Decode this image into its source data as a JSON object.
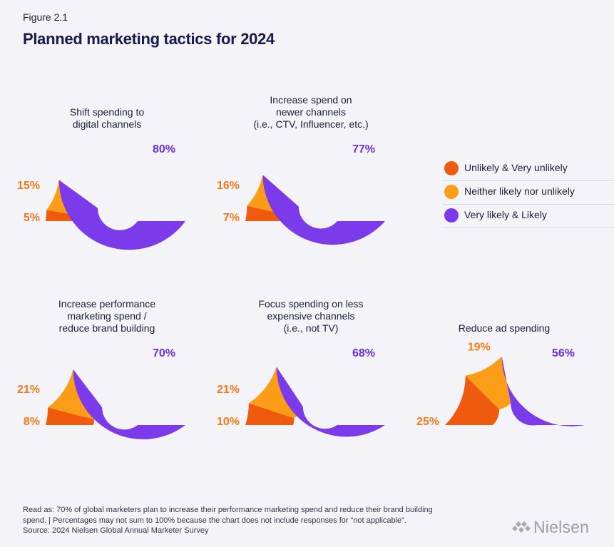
{
  "figure": {
    "label": "Figure 2.1",
    "title": "Planned marketing tactics for 2024"
  },
  "colors": {
    "unlikely": "#f05a0e",
    "neither": "#fb9d16",
    "likely": "#7b3bea",
    "label_orange": "#f07a1a",
    "label_purple": "#6b30d6"
  },
  "legend": [
    {
      "label": "Unlikely & Very unlikely",
      "color": "#f05a0e"
    },
    {
      "label": "Neither likely nor unlikely",
      "color": "#fb9d16"
    },
    {
      "label": "Very likely & Likely",
      "color": "#7b3bea"
    }
  ],
  "chart_data": [
    {
      "type": "pie",
      "title": [
        "Shift spending to",
        "digital channels"
      ],
      "categories": [
        "Unlikely & Very unlikely",
        "Neither likely nor unlikely",
        "Very likely & Likely"
      ],
      "values": [
        5,
        15,
        80
      ],
      "labels": [
        "5%",
        "15%",
        "80%"
      ]
    },
    {
      "type": "pie",
      "title": [
        "Increase spend on",
        "newer channels",
        "(i.e., CTV, Influencer, etc.)"
      ],
      "categories": [
        "Unlikely & Very unlikely",
        "Neither likely nor unlikely",
        "Very likely & Likely"
      ],
      "values": [
        7,
        16,
        77
      ],
      "labels": [
        "7%",
        "16%",
        "77%"
      ]
    },
    {
      "type": "pie",
      "title": [
        "Increase performance",
        "marketing spend /",
        "reduce brand building"
      ],
      "categories": [
        "Unlikely & Very unlikely",
        "Neither likely nor unlikely",
        "Very likely & Likely"
      ],
      "values": [
        8,
        21,
        70
      ],
      "labels": [
        "8%",
        "21%",
        "70%"
      ]
    },
    {
      "type": "pie",
      "title": [
        "Focus spending on less",
        "expensive channels",
        "(i.e., not TV)"
      ],
      "categories": [
        "Unlikely & Very unlikely",
        "Neither likely nor unlikely",
        "Very likely & Likely"
      ],
      "values": [
        10,
        21,
        68
      ],
      "labels": [
        "10%",
        "21%",
        "68%"
      ]
    },
    {
      "type": "pie",
      "title": [
        "Reduce ad spending"
      ],
      "categories": [
        "Unlikely & Very unlikely",
        "Neither likely nor unlikely",
        "Very likely & Likely"
      ],
      "values": [
        25,
        19,
        56
      ],
      "labels": [
        "25%",
        "19%",
        "56%"
      ]
    }
  ],
  "footnote": {
    "line1": "Read as: 70% of global marketers plan to increase their performance marketing spend and reduce their brand building",
    "line2": "spend. | Percentages may not sum to 100% because the chart does not include responses for “not applicable”.",
    "line3": "Source: 2024 Nielsen Global Annual Marketer Survey"
  },
  "logo": {
    "text": "Nielsen"
  }
}
